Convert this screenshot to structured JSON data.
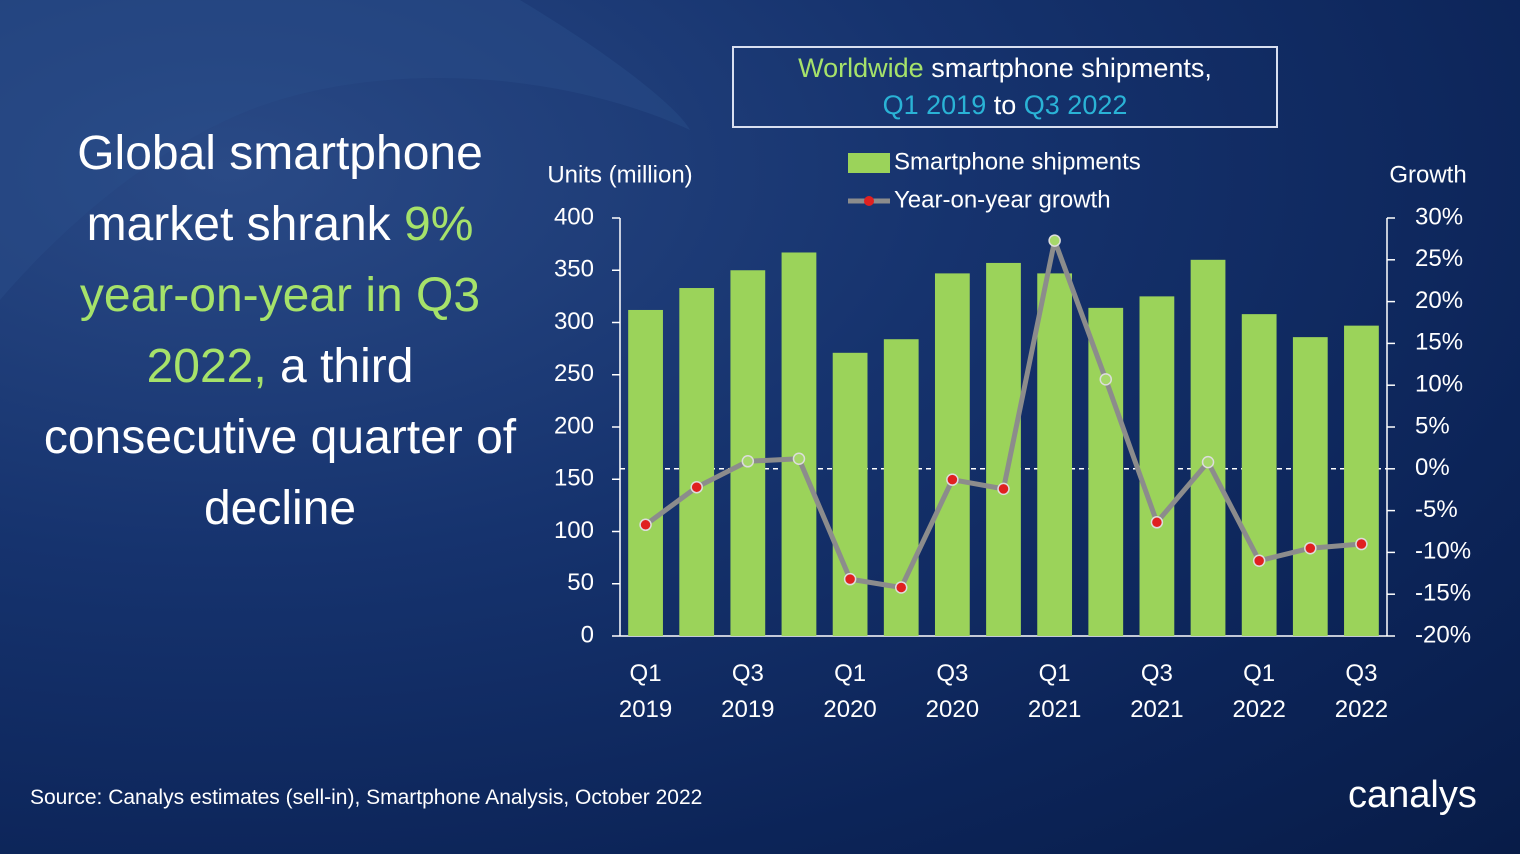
{
  "headline": [
    "Global smartphone market shrank",
    "9% year-on-year in Q3 2022,",
    "a third consecutive quarter of decline"
  ],
  "chart_data": {
    "type": "bar_line",
    "title": [
      "Worldwide",
      "smartphone shipments,",
      "Q1 2019",
      "to",
      "Q3 2022"
    ],
    "y_label": "Units (million)",
    "y2_label": "Growth",
    "categories": [
      "Q1 2019",
      null,
      "Q3 2019",
      null,
      "Q1 2020",
      null,
      "Q3 2020",
      null,
      "Q1 2021",
      null,
      "Q3 2021",
      null,
      "Q1 2022",
      null,
      "Q3 2022"
    ],
    "series": [
      {
        "name": "Smartphone shipments",
        "color": "#9bd35a",
        "type": "bar",
        "values": [
          312,
          333,
          350,
          367,
          271,
          284,
          347,
          357,
          347,
          314,
          325,
          360,
          308,
          286,
          297
        ]
      },
      {
        "name": "Year-on-year growth",
        "color": "#8c8c8c",
        "type": "line",
        "axis": "y2",
        "values": [
          -6.7,
          -2.2,
          0.9,
          1.2,
          -13.2,
          -14.2,
          -1.3,
          -2.4,
          27.3,
          10.7,
          -6.4,
          0.8,
          -11,
          -9.5,
          -9
        ]
      }
    ],
    "marker_colors": {
      "positive": "#a6d86a",
      "negative": "#e02020"
    },
    "ylim": [
      0,
      400
    ],
    "yticks": [
      0,
      50,
      100,
      150,
      200,
      250,
      300,
      350,
      400
    ],
    "y2lim": [
      -20,
      30
    ],
    "y2ticks": [
      {
        "value": -20,
        "label": "-20%"
      },
      {
        "value": -15,
        "label": "-15%"
      },
      {
        "value": -10,
        "label": "-10%"
      },
      {
        "value": -5,
        "label": "-5%"
      },
      {
        "value": 0,
        "label": "0%"
      },
      {
        "value": 5,
        "label": "5%"
      },
      {
        "value": 10,
        "label": "10%"
      },
      {
        "value": 15,
        "label": "15%"
      },
      {
        "value": 20,
        "label": "20%"
      },
      {
        "value": 25,
        "label": "25%"
      },
      {
        "value": 30,
        "label": "30%"
      }
    ],
    "source": "Source: Canalys estimates (sell-in), Smartphone Analysis, October 2022",
    "logo": "canalys"
  }
}
